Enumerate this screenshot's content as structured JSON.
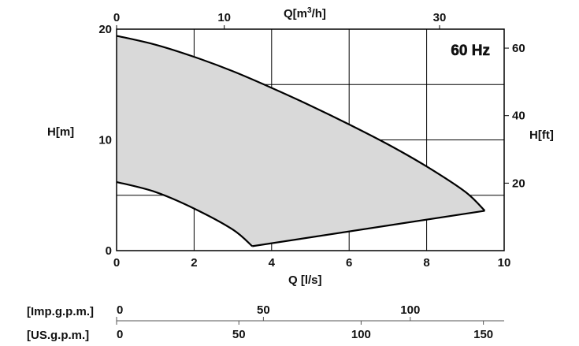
{
  "chart_data": {
    "type": "area",
    "annotation": "60 Hz",
    "x_primary": {
      "label": "Q [l/s]",
      "ticks": [
        "0",
        "2",
        "4",
        "6",
        "8",
        "10"
      ],
      "range": [
        0,
        10
      ]
    },
    "x_top": {
      "label_base": "Q[m",
      "label_sup": "3",
      "label_end": "/h]",
      "ticks": [
        "0",
        "10",
        "30"
      ],
      "tick_values_ls": [
        0,
        2.778,
        8.333
      ]
    },
    "y_left": {
      "label": "H[m]",
      "ticks": [
        "0",
        "10",
        "20"
      ],
      "range": [
        0,
        20
      ]
    },
    "y_right": {
      "label": "H[ft]",
      "ticks": [
        "20",
        "40",
        "60"
      ],
      "tick_values_m": [
        6.096,
        12.192,
        18.288
      ]
    },
    "imp_gpm": {
      "label": "[Imp.g.p.m.]",
      "ticks": [
        "0",
        "50",
        "100"
      ],
      "tick_values_ls": [
        0,
        3.788,
        7.577
      ]
    },
    "us_gpm": {
      "label": "[US.g.p.m.]",
      "ticks": [
        "0",
        "50",
        "100",
        "150"
      ],
      "tick_values_ls": [
        0,
        3.155,
        6.309,
        9.464
      ]
    },
    "envelope": {
      "upper": {
        "x": [
          0,
          1,
          2,
          3,
          4,
          5,
          6,
          7,
          8,
          9,
          9.5
        ],
        "y": [
          19.4,
          18.6,
          17.5,
          16.2,
          14.7,
          13.1,
          11.4,
          9.6,
          7.6,
          5.3,
          3.6
        ]
      },
      "lower": {
        "x": [
          0,
          1,
          2,
          3,
          3.5
        ],
        "y": [
          6.2,
          5.3,
          3.8,
          1.9,
          0.4
        ]
      },
      "right": {
        "x": [
          3.5,
          9.5
        ],
        "y": [
          0.4,
          3.6
        ]
      }
    },
    "fill_color": "#d9d9d9",
    "line_color": "#000000",
    "grid": true
  }
}
